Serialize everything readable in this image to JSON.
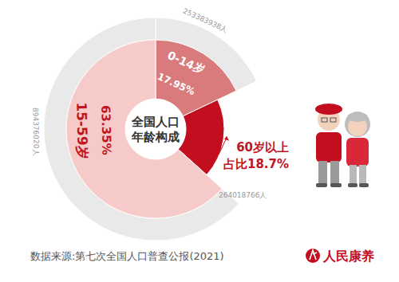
{
  "chart_data": {
    "type": "pie",
    "title": [
      "全国人口",
      "年龄构成"
    ],
    "categories": [
      "0-14岁",
      "60岁以上",
      "15-59岁"
    ],
    "values": [
      17.95,
      18.7,
      63.35
    ],
    "value_labels": [
      "17.95%",
      "占比18.7%",
      "63.35%"
    ],
    "counts": [
      253383938,
      264018766,
      894376020
    ],
    "count_labels": [
      "253383938人",
      "264018766人",
      "894376020人"
    ],
    "colors": [
      "#d97a7c",
      "#c20e1f",
      "#f6cac9"
    ],
    "data_labels": true,
    "source": "数据来源:第七次全国人口普查公报(2021)",
    "logo": "人民康养"
  }
}
